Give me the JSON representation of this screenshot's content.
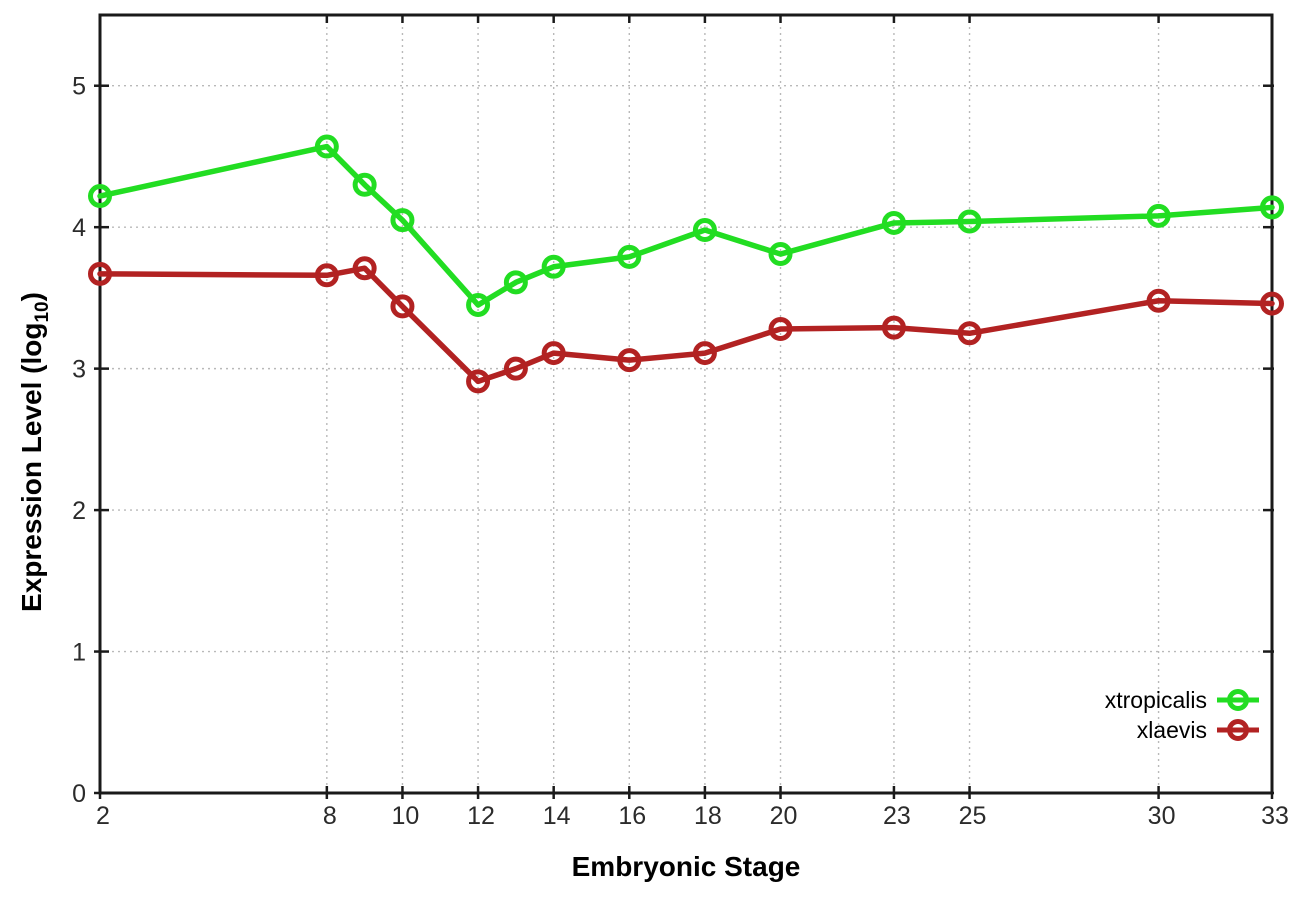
{
  "chart_data": {
    "type": "line",
    "title": "",
    "xlabel": "Embryonic Stage",
    "ylabel_prefix": "Expression Level (log",
    "ylabel_sub": "10",
    "ylabel_suffix": ")",
    "xlim": [
      2,
      33
    ],
    "ylim": [
      0,
      5.5
    ],
    "xticks": [
      2,
      8,
      10,
      12,
      14,
      16,
      18,
      20,
      23,
      25,
      30,
      33
    ],
    "yticks": [
      0,
      1,
      2,
      3,
      4,
      5
    ],
    "grid": true,
    "legend_position": "inside-bottom-right",
    "x": [
      2,
      8,
      9,
      10,
      12,
      13,
      14,
      16,
      18,
      20,
      23,
      25,
      30,
      33
    ],
    "series": [
      {
        "name": "xtropicalis",
        "color": "#22dd22",
        "values": [
          4.22,
          4.57,
          4.3,
          4.05,
          3.45,
          3.61,
          3.72,
          3.79,
          3.98,
          3.81,
          4.03,
          4.04,
          4.08,
          4.14
        ]
      },
      {
        "name": "xlaevis",
        "color": "#b22222",
        "values": [
          3.67,
          3.66,
          3.71,
          3.44,
          2.91,
          3.0,
          3.11,
          3.06,
          3.11,
          3.28,
          3.29,
          3.25,
          3.48,
          3.46
        ]
      }
    ],
    "axis_color": "#1a1a1a",
    "grid_color": "#b9b9b9",
    "tick_label_color": "#2b2b2b"
  }
}
